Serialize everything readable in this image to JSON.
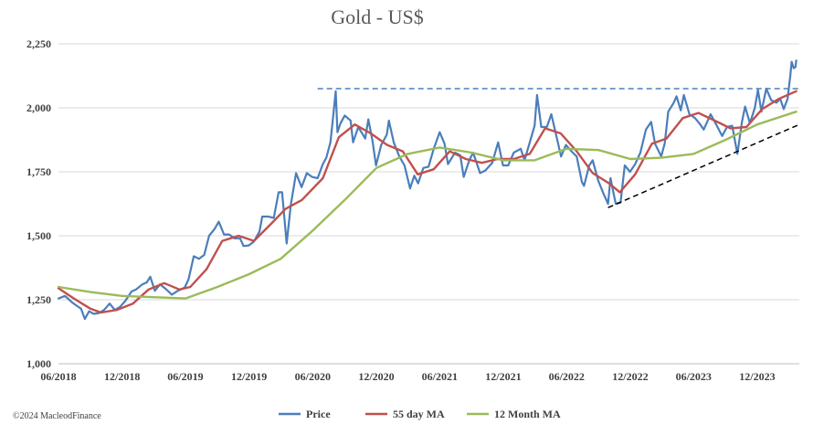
{
  "chart_data": {
    "type": "line",
    "title": "Gold - US$",
    "xlabel": "",
    "ylabel": "",
    "ylim": [
      1000,
      2250
    ],
    "yticks": [
      1000,
      1250,
      1500,
      1750,
      2000,
      2250
    ],
    "ytick_labels": [
      "1,000",
      "1,250",
      "1,500",
      "1,750",
      "2,000",
      "2,250"
    ],
    "xlim": [
      "2018-06",
      "2024-03"
    ],
    "xticks": [
      "2018-06",
      "2018-12",
      "2019-06",
      "2019-12",
      "2020-06",
      "2020-12",
      "2021-06",
      "2021-12",
      "2022-06",
      "2022-12",
      "2023-06",
      "2023-12"
    ],
    "xtick_labels": [
      "06/2018",
      "12/2018",
      "06/2019",
      "12/2019",
      "06/2020",
      "12/2020",
      "06/2021",
      "12/2021",
      "06/2022",
      "12/2022",
      "06/2023",
      "12/2023"
    ],
    "grid": "horizontal",
    "legend_position": "bottom",
    "series": [
      {
        "name": "Price",
        "color": "#4a7ebb",
        "points": [
          [
            "2018-06-01",
            1255
          ],
          [
            "2018-06-20",
            1265
          ],
          [
            "2018-07-10",
            1240
          ],
          [
            "2018-07-25",
            1225
          ],
          [
            "2018-08-05",
            1215
          ],
          [
            "2018-08-16",
            1175
          ],
          [
            "2018-08-28",
            1205
          ],
          [
            "2018-09-10",
            1195
          ],
          [
            "2018-09-25",
            1198
          ],
          [
            "2018-10-10",
            1210
          ],
          [
            "2018-10-26",
            1235
          ],
          [
            "2018-11-10",
            1210
          ],
          [
            "2018-11-25",
            1222
          ],
          [
            "2018-12-10",
            1245
          ],
          [
            "2018-12-28",
            1282
          ],
          [
            "2019-01-10",
            1290
          ],
          [
            "2019-01-28",
            1310
          ],
          [
            "2019-02-10",
            1318
          ],
          [
            "2019-02-20",
            1340
          ],
          [
            "2019-03-05",
            1285
          ],
          [
            "2019-03-20",
            1310
          ],
          [
            "2019-04-05",
            1293
          ],
          [
            "2019-04-23",
            1270
          ],
          [
            "2019-05-10",
            1285
          ],
          [
            "2019-05-30",
            1298
          ],
          [
            "2019-06-10",
            1330
          ],
          [
            "2019-06-25",
            1420
          ],
          [
            "2019-07-10",
            1410
          ],
          [
            "2019-07-25",
            1425
          ],
          [
            "2019-08-08",
            1500
          ],
          [
            "2019-08-23",
            1525
          ],
          [
            "2019-09-05",
            1555
          ],
          [
            "2019-09-20",
            1505
          ],
          [
            "2019-10-05",
            1505
          ],
          [
            "2019-10-20",
            1490
          ],
          [
            "2019-11-05",
            1490
          ],
          [
            "2019-11-15",
            1460
          ],
          [
            "2019-11-30",
            1462
          ],
          [
            "2019-12-15",
            1478
          ],
          [
            "2019-12-31",
            1517
          ],
          [
            "2020-01-08",
            1575
          ],
          [
            "2020-01-25",
            1575
          ],
          [
            "2020-02-10",
            1570
          ],
          [
            "2020-02-24",
            1670
          ],
          [
            "2020-03-05",
            1670
          ],
          [
            "2020-03-18",
            1470
          ],
          [
            "2020-03-30",
            1620
          ],
          [
            "2020-04-14",
            1745
          ],
          [
            "2020-04-30",
            1690
          ],
          [
            "2020-05-15",
            1745
          ],
          [
            "2020-05-30",
            1730
          ],
          [
            "2020-06-15",
            1725
          ],
          [
            "2020-06-30",
            1780
          ],
          [
            "2020-07-10",
            1805
          ],
          [
            "2020-07-22",
            1865
          ],
          [
            "2020-07-30",
            1970
          ],
          [
            "2020-08-06",
            2065
          ],
          [
            "2020-08-11",
            1905
          ],
          [
            "2020-08-20",
            1940
          ],
          [
            "2020-09-01",
            1970
          ],
          [
            "2020-09-18",
            1950
          ],
          [
            "2020-09-25",
            1865
          ],
          [
            "2020-10-10",
            1925
          ],
          [
            "2020-10-30",
            1880
          ],
          [
            "2020-11-08",
            1955
          ],
          [
            "2020-11-20",
            1870
          ],
          [
            "2020-11-30",
            1775
          ],
          [
            "2020-12-15",
            1855
          ],
          [
            "2020-12-31",
            1895
          ],
          [
            "2021-01-06",
            1950
          ],
          [
            "2021-01-20",
            1865
          ],
          [
            "2021-02-05",
            1810
          ],
          [
            "2021-02-20",
            1775
          ],
          [
            "2021-03-08",
            1685
          ],
          [
            "2021-03-20",
            1735
          ],
          [
            "2021-03-31",
            1705
          ],
          [
            "2021-04-15",
            1765
          ],
          [
            "2021-04-30",
            1770
          ],
          [
            "2021-05-15",
            1840
          ],
          [
            "2021-06-01",
            1905
          ],
          [
            "2021-06-15",
            1860
          ],
          [
            "2021-06-25",
            1780
          ],
          [
            "2021-07-15",
            1825
          ],
          [
            "2021-07-30",
            1815
          ],
          [
            "2021-08-09",
            1730
          ],
          [
            "2021-08-25",
            1795
          ],
          [
            "2021-09-05",
            1825
          ],
          [
            "2021-09-25",
            1745
          ],
          [
            "2021-10-10",
            1755
          ],
          [
            "2021-10-30",
            1785
          ],
          [
            "2021-11-16",
            1865
          ],
          [
            "2021-11-30",
            1775
          ],
          [
            "2021-12-15",
            1775
          ],
          [
            "2021-12-31",
            1825
          ],
          [
            "2022-01-20",
            1840
          ],
          [
            "2022-01-31",
            1795
          ],
          [
            "2022-02-15",
            1865
          ],
          [
            "2022-03-01",
            1930
          ],
          [
            "2022-03-08",
            2050
          ],
          [
            "2022-03-20",
            1925
          ],
          [
            "2022-04-05",
            1925
          ],
          [
            "2022-04-18",
            1975
          ],
          [
            "2022-05-05",
            1875
          ],
          [
            "2022-05-16",
            1810
          ],
          [
            "2022-05-30",
            1855
          ],
          [
            "2022-06-15",
            1830
          ],
          [
            "2022-06-30",
            1810
          ],
          [
            "2022-07-15",
            1710
          ],
          [
            "2022-07-21",
            1695
          ],
          [
            "2022-08-05",
            1775
          ],
          [
            "2022-08-15",
            1795
          ],
          [
            "2022-08-31",
            1715
          ],
          [
            "2022-09-15",
            1665
          ],
          [
            "2022-09-28",
            1625
          ],
          [
            "2022-10-05",
            1725
          ],
          [
            "2022-10-20",
            1625
          ],
          [
            "2022-11-03",
            1630
          ],
          [
            "2022-11-15",
            1775
          ],
          [
            "2022-11-30",
            1750
          ],
          [
            "2022-12-15",
            1780
          ],
          [
            "2022-12-30",
            1825
          ],
          [
            "2023-01-15",
            1915
          ],
          [
            "2023-01-30",
            1945
          ],
          [
            "2023-02-10",
            1860
          ],
          [
            "2023-02-28",
            1810
          ],
          [
            "2023-03-10",
            1860
          ],
          [
            "2023-03-20",
            1985
          ],
          [
            "2023-04-05",
            2020
          ],
          [
            "2023-04-13",
            2045
          ],
          [
            "2023-04-25",
            1990
          ],
          [
            "2023-05-04",
            2050
          ],
          [
            "2023-05-20",
            1975
          ],
          [
            "2023-06-05",
            1960
          ],
          [
            "2023-06-20",
            1935
          ],
          [
            "2023-06-30",
            1915
          ],
          [
            "2023-07-20",
            1975
          ],
          [
            "2023-08-05",
            1935
          ],
          [
            "2023-08-22",
            1890
          ],
          [
            "2023-09-05",
            1925
          ],
          [
            "2023-09-20",
            1930
          ],
          [
            "2023-10-05",
            1820
          ],
          [
            "2023-10-18",
            1945
          ],
          [
            "2023-10-27",
            2005
          ],
          [
            "2023-11-10",
            1940
          ],
          [
            "2023-11-24",
            2000
          ],
          [
            "2023-12-03",
            2070
          ],
          [
            "2023-12-13",
            1985
          ],
          [
            "2023-12-27",
            2075
          ],
          [
            "2024-01-10",
            2030
          ],
          [
            "2024-01-25",
            2020
          ],
          [
            "2024-02-05",
            2035
          ],
          [
            "2024-02-15",
            1995
          ],
          [
            "2024-02-26",
            2035
          ],
          [
            "2024-03-05",
            2125
          ],
          [
            "2024-03-09",
            2180
          ],
          [
            "2024-03-15",
            2155
          ],
          [
            "2024-03-20",
            2160
          ],
          [
            "2024-03-22",
            2185
          ]
        ]
      },
      {
        "name": "55 day MA",
        "color": "#c0504d",
        "points": [
          [
            "2018-06-01",
            1295
          ],
          [
            "2018-07-15",
            1255
          ],
          [
            "2018-09-01",
            1215
          ],
          [
            "2018-10-01",
            1200
          ],
          [
            "2018-11-15",
            1210
          ],
          [
            "2019-01-01",
            1235
          ],
          [
            "2019-02-15",
            1290
          ],
          [
            "2019-04-01",
            1315
          ],
          [
            "2019-05-15",
            1290
          ],
          [
            "2019-06-15",
            1300
          ],
          [
            "2019-08-01",
            1370
          ],
          [
            "2019-09-15",
            1480
          ],
          [
            "2019-11-01",
            1500
          ],
          [
            "2019-12-15",
            1480
          ],
          [
            "2020-02-01",
            1545
          ],
          [
            "2020-03-15",
            1605
          ],
          [
            "2020-05-01",
            1640
          ],
          [
            "2020-06-30",
            1725
          ],
          [
            "2020-08-15",
            1885
          ],
          [
            "2020-09-30",
            1935
          ],
          [
            "2020-11-15",
            1900
          ],
          [
            "2021-01-01",
            1855
          ],
          [
            "2021-02-15",
            1830
          ],
          [
            "2021-03-30",
            1740
          ],
          [
            "2021-05-15",
            1760
          ],
          [
            "2021-06-30",
            1830
          ],
          [
            "2021-08-15",
            1800
          ],
          [
            "2021-09-30",
            1785
          ],
          [
            "2021-11-15",
            1800
          ],
          [
            "2021-12-31",
            1800
          ],
          [
            "2022-02-15",
            1820
          ],
          [
            "2022-03-31",
            1920
          ],
          [
            "2022-05-15",
            1900
          ],
          [
            "2022-06-30",
            1830
          ],
          [
            "2022-08-15",
            1745
          ],
          [
            "2022-10-01",
            1705
          ],
          [
            "2022-11-01",
            1670
          ],
          [
            "2022-12-15",
            1740
          ],
          [
            "2023-02-01",
            1860
          ],
          [
            "2023-03-15",
            1880
          ],
          [
            "2023-05-01",
            1960
          ],
          [
            "2023-06-15",
            1980
          ],
          [
            "2023-08-01",
            1950
          ],
          [
            "2023-09-15",
            1920
          ],
          [
            "2023-10-31",
            1925
          ],
          [
            "2023-12-15",
            1995
          ],
          [
            "2024-02-01",
            2035
          ],
          [
            "2024-03-22",
            2065
          ]
        ]
      },
      {
        "name": "12 Month MA",
        "color": "#9bbb59",
        "points": [
          [
            "2018-06-01",
            1300
          ],
          [
            "2018-09-01",
            1280
          ],
          [
            "2018-12-01",
            1265
          ],
          [
            "2019-03-01",
            1260
          ],
          [
            "2019-06-01",
            1255
          ],
          [
            "2019-09-01",
            1300
          ],
          [
            "2019-12-01",
            1350
          ],
          [
            "2020-03-01",
            1410
          ],
          [
            "2020-06-01",
            1520
          ],
          [
            "2020-09-01",
            1640
          ],
          [
            "2020-12-01",
            1765
          ],
          [
            "2021-03-01",
            1820
          ],
          [
            "2021-06-01",
            1845
          ],
          [
            "2021-09-01",
            1825
          ],
          [
            "2021-12-01",
            1795
          ],
          [
            "2022-03-01",
            1795
          ],
          [
            "2022-06-01",
            1840
          ],
          [
            "2022-09-01",
            1835
          ],
          [
            "2022-12-01",
            1800
          ],
          [
            "2023-03-01",
            1805
          ],
          [
            "2023-06-01",
            1820
          ],
          [
            "2023-09-01",
            1875
          ],
          [
            "2023-12-01",
            1935
          ],
          [
            "2024-03-22",
            1985
          ]
        ]
      }
    ],
    "annotations": [
      {
        "type": "horizontal-dashed-line",
        "color": "#4a7ebb",
        "from": [
          "2020-06-15",
          2075
        ],
        "to": [
          "2024-03-31",
          2075
        ]
      },
      {
        "type": "trend-dashed-line",
        "color": "#000000",
        "from": [
          "2022-09-28",
          1610
        ],
        "to": [
          "2024-03-31",
          1935
        ]
      }
    ]
  },
  "footer": {
    "copyright": "©2024 MacleodFinance"
  }
}
